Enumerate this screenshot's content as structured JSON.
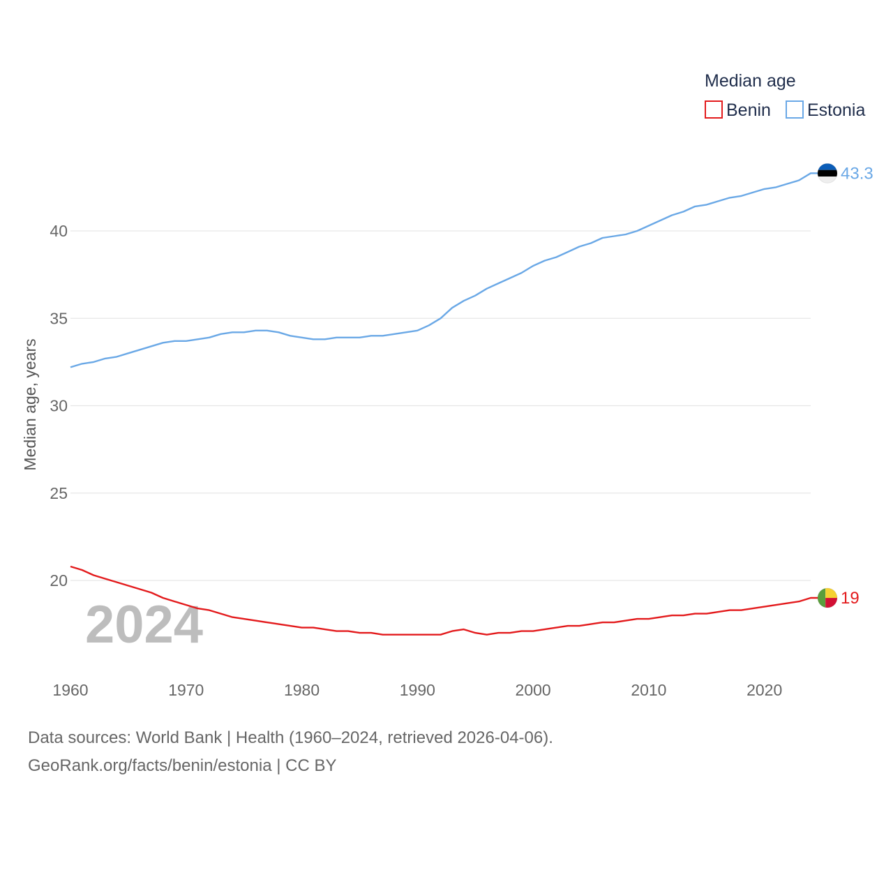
{
  "chart_data": {
    "type": "line",
    "title": "",
    "xlabel": "",
    "ylabel": "Median age, years",
    "xlim": [
      1960,
      2024
    ],
    "ylim": [
      15,
      45
    ],
    "x_ticks": [
      1960,
      1970,
      1980,
      1990,
      2000,
      2010,
      2020
    ],
    "y_ticks": [
      20,
      25,
      30,
      35,
      40
    ],
    "legend_title": "Median age",
    "legend_position": "top-right",
    "year_label": "2024",
    "x": [
      1960,
      1961,
      1962,
      1963,
      1964,
      1965,
      1966,
      1967,
      1968,
      1969,
      1970,
      1971,
      1972,
      1973,
      1974,
      1975,
      1976,
      1977,
      1978,
      1979,
      1980,
      1981,
      1982,
      1983,
      1984,
      1985,
      1986,
      1987,
      1988,
      1989,
      1990,
      1991,
      1992,
      1993,
      1994,
      1995,
      1996,
      1997,
      1998,
      1999,
      2000,
      2001,
      2002,
      2003,
      2004,
      2005,
      2006,
      2007,
      2008,
      2009,
      2010,
      2011,
      2012,
      2013,
      2014,
      2015,
      2016,
      2017,
      2018,
      2019,
      2020,
      2021,
      2022,
      2023,
      2024
    ],
    "series": [
      {
        "name": "Benin",
        "color": "#e31a1c",
        "end_label": "19",
        "values": [
          20.8,
          20.6,
          20.3,
          20.1,
          19.9,
          19.7,
          19.5,
          19.3,
          19.0,
          18.8,
          18.6,
          18.4,
          18.3,
          18.1,
          17.9,
          17.8,
          17.7,
          17.6,
          17.5,
          17.4,
          17.3,
          17.3,
          17.2,
          17.1,
          17.1,
          17.0,
          17.0,
          16.9,
          16.9,
          16.9,
          16.9,
          16.9,
          16.9,
          17.1,
          17.2,
          17.0,
          16.9,
          17.0,
          17.0,
          17.1,
          17.1,
          17.2,
          17.3,
          17.4,
          17.4,
          17.5,
          17.6,
          17.6,
          17.7,
          17.8,
          17.8,
          17.9,
          18.0,
          18.0,
          18.1,
          18.1,
          18.2,
          18.3,
          18.3,
          18.4,
          18.5,
          18.6,
          18.7,
          18.8,
          19.0
        ]
      },
      {
        "name": "Estonia",
        "color": "#6aa8e6",
        "end_label": "43.3",
        "values": [
          32.2,
          32.4,
          32.5,
          32.7,
          32.8,
          33.0,
          33.2,
          33.4,
          33.6,
          33.7,
          33.7,
          33.8,
          33.9,
          34.1,
          34.2,
          34.2,
          34.3,
          34.3,
          34.2,
          34.0,
          33.9,
          33.8,
          33.8,
          33.9,
          33.9,
          33.9,
          34.0,
          34.0,
          34.1,
          34.2,
          34.3,
          34.6,
          35.0,
          35.6,
          36.0,
          36.3,
          36.7,
          37.0,
          37.3,
          37.6,
          38.0,
          38.3,
          38.5,
          38.8,
          39.1,
          39.3,
          39.6,
          39.7,
          39.8,
          40.0,
          40.3,
          40.6,
          40.9,
          41.1,
          41.4,
          41.5,
          41.7,
          41.9,
          42.0,
          42.2,
          42.4,
          42.5,
          42.7,
          42.9,
          43.3
        ]
      }
    ]
  },
  "source_line_1": "Data sources: World Bank | Health (1960–2024, retrieved 2026-04-06).",
  "source_line_2": "GeoRank.org/facts/benin/estonia | CC BY",
  "flags": {
    "benin": {
      "green": "#5a9e3c",
      "yellow": "#f5d132",
      "red": "#d21034"
    },
    "estonia": {
      "blue": "#0b5db8",
      "black": "#000000",
      "white": "#ffffff"
    }
  }
}
